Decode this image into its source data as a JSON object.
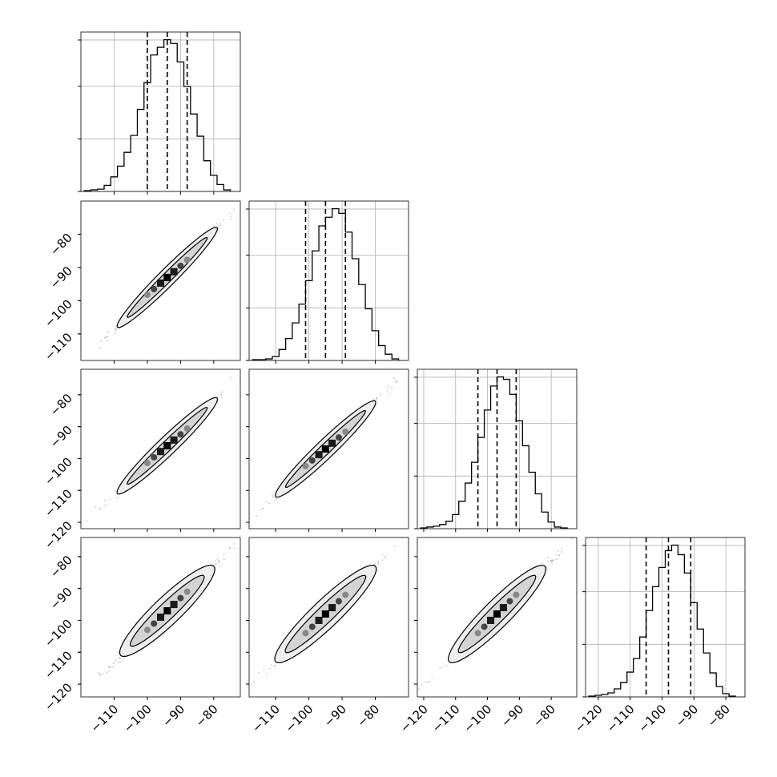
{
  "chart_data": {
    "type": "corner",
    "title": "",
    "n_params": 4,
    "axis_ranges": [
      [
        -120,
        -72
      ],
      [
        -118,
        -70
      ],
      [
        -122,
        -72
      ],
      [
        -124,
        -74
      ]
    ],
    "axis_ticks": [
      [
        -110,
        -100,
        -90,
        -80
      ],
      [
        -110,
        -100,
        -90,
        -80
      ],
      [
        -120,
        -110,
        -100,
        -90,
        -80
      ],
      [
        -120,
        -110,
        -100,
        -90,
        -80
      ]
    ],
    "grid": true,
    "diagonal_histograms": [
      {
        "param_index": 0,
        "bin_edges": [
          -119,
          -117,
          -115,
          -113,
          -111,
          -109,
          -107,
          -105,
          -103,
          -101,
          -99,
          -97,
          -95,
          -93,
          -91,
          -89,
          -87,
          -85,
          -83,
          -81,
          -79,
          -77,
          -75
        ],
        "counts": [
          1,
          2,
          3,
          8,
          19,
          33,
          51,
          73,
          107,
          142,
          178,
          188,
          198,
          193,
          169,
          137,
          101,
          72,
          40,
          21,
          9,
          2
        ],
        "quantile_lines": [
          -100,
          -94,
          -88
        ]
      },
      {
        "param_index": 1,
        "bin_edges": [
          -117,
          -115,
          -113,
          -111,
          -109,
          -107,
          -105,
          -103,
          -101,
          -99,
          -97,
          -95,
          -93,
          -91,
          -89,
          -87,
          -85,
          -83,
          -81,
          -79,
          -77,
          -75,
          -73
        ],
        "counts": [
          1,
          1,
          2,
          5,
          14,
          28,
          48,
          72,
          102,
          140,
          172,
          183,
          194,
          188,
          164,
          130,
          97,
          66,
          38,
          19,
          8,
          2
        ],
        "quantile_lines": [
          -101,
          -95,
          -89
        ]
      },
      {
        "param_index": 2,
        "bin_edges": [
          -121,
          -119,
          -117,
          -115,
          -113,
          -111,
          -109,
          -107,
          -105,
          -103,
          -101,
          -99,
          -97,
          -95,
          -93,
          -91,
          -89,
          -87,
          -85,
          -83,
          -81,
          -79,
          -77,
          -75
        ],
        "counts": [
          1,
          2,
          3,
          5,
          9,
          17,
          33,
          55,
          80,
          110,
          143,
          172,
          183,
          180,
          162,
          130,
          100,
          68,
          42,
          20,
          8,
          2,
          1
        ],
        "quantile_lines": [
          -103,
          -97,
          -91
        ]
      },
      {
        "param_index": 3,
        "bin_edges": [
          -123,
          -121,
          -119,
          -117,
          -115,
          -113,
          -111,
          -109,
          -107,
          -105,
          -103,
          -101,
          -99,
          -97,
          -95,
          -93,
          -91,
          -89,
          -87,
          -85,
          -83,
          -81,
          -79,
          -77
        ],
        "counts": [
          1,
          2,
          3,
          5,
          10,
          18,
          31,
          48,
          75,
          108,
          138,
          162,
          183,
          190,
          178,
          155,
          118,
          85,
          55,
          30,
          13,
          4,
          1
        ],
        "quantile_lines": [
          -105,
          -98,
          -91
        ]
      }
    ],
    "pair_plots": [
      {
        "row": 1,
        "col": 0,
        "contours": [
          {
            "center": [
              -94,
              -93
            ],
            "halfwidth": 15,
            "thickness": 1.8
          },
          {
            "center": [
              -94,
              -93
            ],
            "halfwidth": 12,
            "thickness": 1.0
          }
        ],
        "points": [
          [
            -100,
            -98.2
          ],
          [
            -98,
            -96.5
          ],
          [
            -96,
            -94.7
          ],
          [
            -94,
            -93
          ],
          [
            -92,
            -91.3
          ],
          [
            -90,
            -89.5
          ],
          [
            -88,
            -87.7
          ]
        ]
      },
      {
        "row": 2,
        "col": 0,
        "contours": [
          {
            "center": [
              -94,
              -96
            ],
            "halfwidth": 15,
            "thickness": 2.0
          },
          {
            "center": [
              -94,
              -96
            ],
            "halfwidth": 12,
            "thickness": 1.1
          }
        ],
        "points": [
          [
            -100,
            -101.4
          ],
          [
            -98,
            -99.6
          ],
          [
            -96,
            -97.8
          ],
          [
            -94,
            -96
          ],
          [
            -92,
            -94.2
          ],
          [
            -90,
            -92.4
          ],
          [
            -88,
            -90.6
          ]
        ]
      },
      {
        "row": 2,
        "col": 1,
        "contours": [
          {
            "center": [
              -95,
              -97
            ],
            "halfwidth": 15,
            "thickness": 2.0
          },
          {
            "center": [
              -95,
              -97
            ],
            "halfwidth": 12,
            "thickness": 1.1
          }
        ],
        "points": [
          [
            -101,
            -102.4
          ],
          [
            -99,
            -100.6
          ],
          [
            -97,
            -98.8
          ],
          [
            -95,
            -97
          ],
          [
            -93,
            -95.2
          ],
          [
            -91,
            -93.4
          ],
          [
            -89,
            -91.6
          ]
        ]
      },
      {
        "row": 3,
        "col": 0,
        "contours": [
          {
            "center": [
              -94,
              -97
            ],
            "halfwidth": 14,
            "thickness": 3.0
          },
          {
            "center": [
              -94,
              -97
            ],
            "halfwidth": 11,
            "thickness": 1.8
          }
        ],
        "points": [
          [
            -100,
            -103
          ],
          [
            -98,
            -101
          ],
          [
            -96,
            -99
          ],
          [
            -94,
            -97
          ],
          [
            -92,
            -95
          ],
          [
            -90,
            -93
          ],
          [
            -88,
            -91
          ]
        ]
      },
      {
        "row": 3,
        "col": 1,
        "contours": [
          {
            "center": [
              -95,
              -98
            ],
            "halfwidth": 15,
            "thickness": 3.0
          },
          {
            "center": [
              -95,
              -98
            ],
            "halfwidth": 12,
            "thickness": 1.8
          }
        ],
        "points": [
          [
            -101,
            -104
          ],
          [
            -99,
            -102
          ],
          [
            -97,
            -100
          ],
          [
            -95,
            -98
          ],
          [
            -93,
            -96
          ],
          [
            -91,
            -94
          ],
          [
            -89,
            -92
          ]
        ]
      },
      {
        "row": 3,
        "col": 2,
        "contours": [
          {
            "center": [
              -97,
              -98
            ],
            "halfwidth": 15,
            "thickness": 3.0
          },
          {
            "center": [
              -97,
              -98
            ],
            "halfwidth": 12,
            "thickness": 1.8
          }
        ],
        "points": [
          [
            -103,
            -104
          ],
          [
            -101,
            -102
          ],
          [
            -99,
            -100
          ],
          [
            -97,
            -98
          ],
          [
            -95,
            -96
          ],
          [
            -93,
            -94
          ],
          [
            -91,
            -92
          ]
        ]
      }
    ]
  }
}
